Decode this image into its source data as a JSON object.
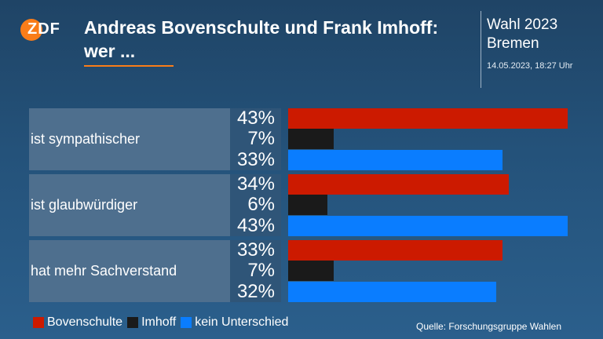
{
  "header": {
    "logo_text": "ZDF",
    "title_line1": "Andreas Bovenschulte und Frank Imhoff:",
    "title_line2": "wer ...",
    "right_line1": "Wahl 2023",
    "right_line2": "Bremen",
    "datetime": "14.05.2023, 18:27 Uhr"
  },
  "colors": {
    "Bovenschulte": "#cc1a00",
    "Imhoff": "#1a1a1a",
    "kein Unterschied": "#0a7dff",
    "accent": "#fa7d19"
  },
  "chart_data": {
    "type": "bar",
    "orientation": "horizontal",
    "categories": [
      "ist sympathischer",
      "ist glaubwürdiger",
      "hat mehr Sachverstand"
    ],
    "series": [
      {
        "name": "Bovenschulte",
        "values": [
          43,
          34,
          33
        ],
        "labels": [
          "43%",
          "34%",
          "33%"
        ]
      },
      {
        "name": "Imhoff",
        "values": [
          7,
          6,
          7
        ],
        "labels": [
          "7%",
          "6%",
          "7%"
        ]
      },
      {
        "name": "kein Unterschied",
        "values": [
          33,
          43,
          32
        ],
        "labels": [
          "33%",
          "43%",
          "32%"
        ]
      }
    ],
    "xlim": [
      0,
      43
    ],
    "legend_position": "bottom-left",
    "grid": false
  },
  "legend": {
    "items": [
      "Bovenschulte",
      "Imhoff",
      "kein Unterschied"
    ]
  },
  "source": "Quelle: Forschungsgruppe Wahlen"
}
